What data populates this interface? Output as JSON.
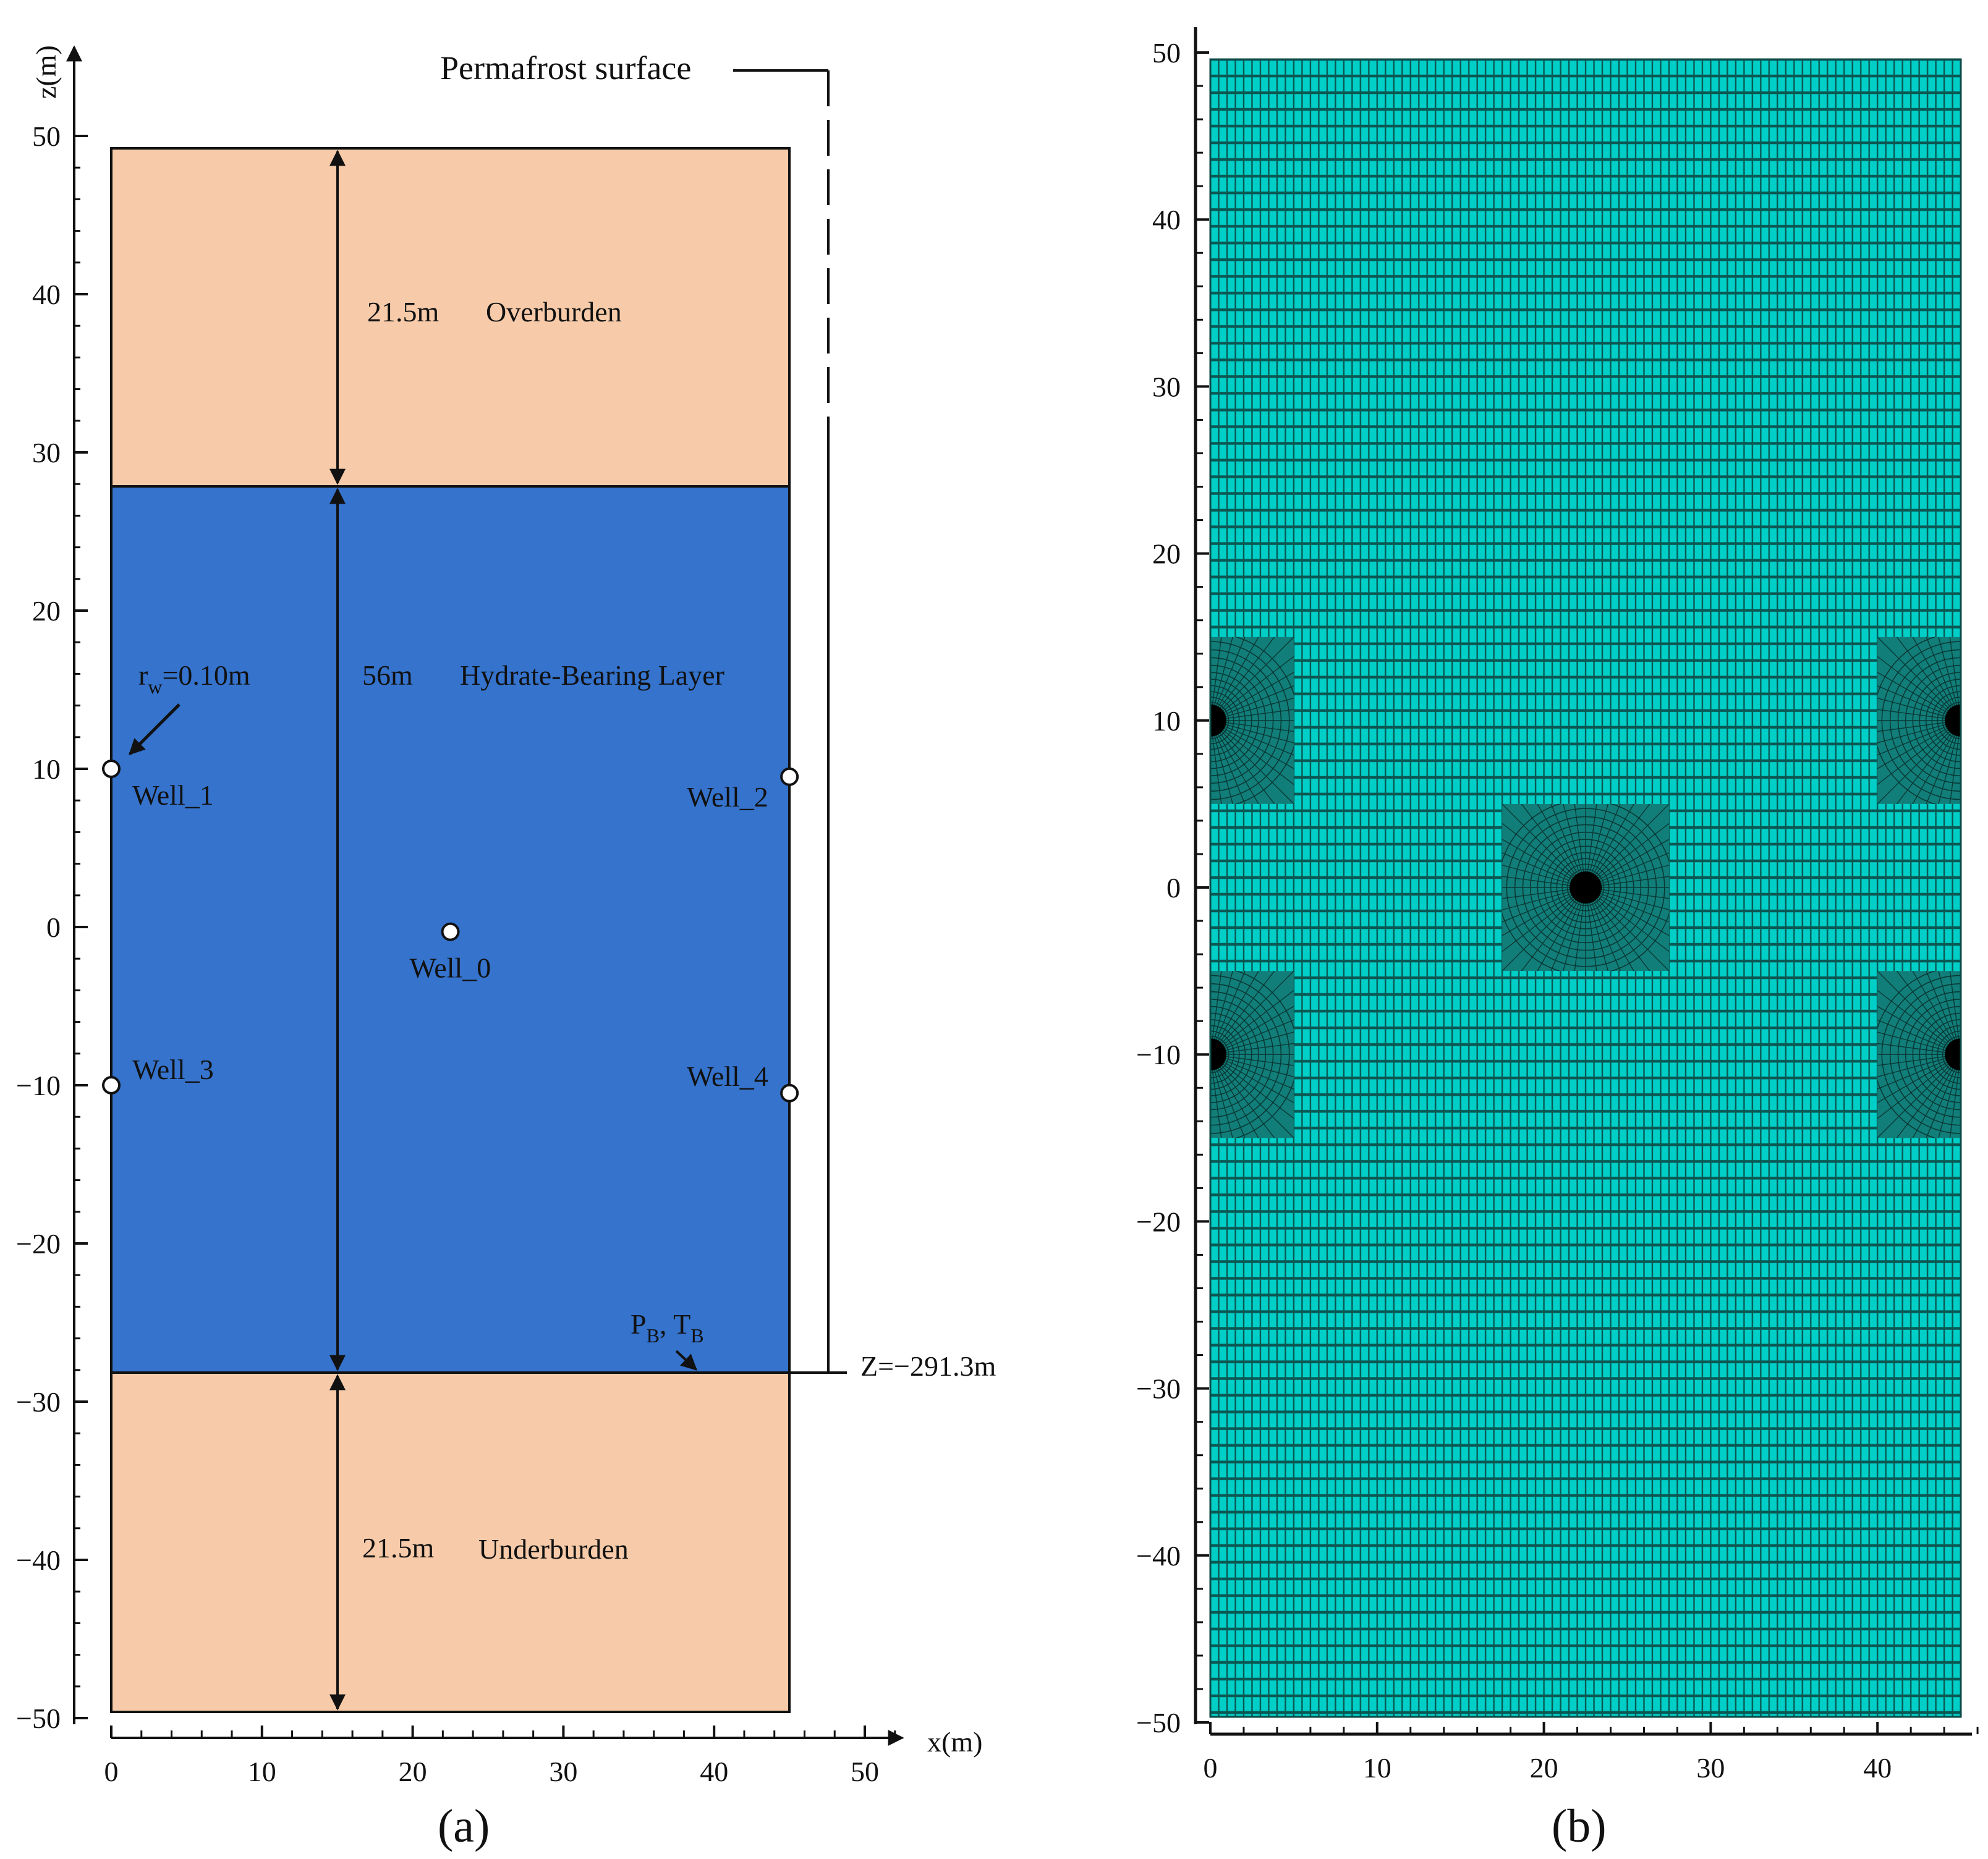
{
  "panel_a": {
    "label": "(a)",
    "axis": {
      "x_title": "x(m)",
      "z_title": "z(m)",
      "x_ticks": [
        "0",
        "10",
        "20",
        "30",
        "40",
        "50"
      ],
      "z_ticks": [
        "50",
        "40",
        "30",
        "20",
        "10",
        "0",
        "−10",
        "−20",
        "−30",
        "−40",
        "−50"
      ]
    },
    "layers": {
      "overburden": {
        "name": "Overburden",
        "thickness": "21.5m",
        "color": "#f7cba9"
      },
      "hydrate": {
        "name": "Hydrate-Bearing Layer",
        "thickness": "56m",
        "color": "#3573cc"
      },
      "underburden": {
        "name": "Underburden",
        "thickness": "21.5m",
        "color": "#f7cba9"
      }
    },
    "permafrost_label": "Permafrost surface",
    "depth_label": "Z=−291.3m",
    "radius_label": {
      "main": "r",
      "sub": "w",
      "rest": "=0.10m"
    },
    "boundary_label": {
      "p": "P",
      "p_sub": "B",
      "sep": ", ",
      "t": "T",
      "t_sub": "B"
    },
    "wells": [
      {
        "name": "Well_0",
        "x": 22.5,
        "z": -0.3
      },
      {
        "name": "Well_1",
        "x": 0,
        "z": 10
      },
      {
        "name": "Well_2",
        "x": 45,
        "z": 9.5
      },
      {
        "name": "Well_3",
        "x": 0,
        "z": -10
      },
      {
        "name": "Well_4",
        "x": 45,
        "z": -10.5
      }
    ]
  },
  "panel_b": {
    "label": "(b)",
    "mesh_color": "#00cfc8",
    "x_ticks": [
      "0",
      "10",
      "20",
      "30",
      "40"
    ],
    "y_ticks": [
      "50",
      "40",
      "30",
      "20",
      "10",
      "0",
      "−10",
      "−20",
      "−30",
      "−40",
      "−50"
    ],
    "refined_wells": [
      {
        "x": 0,
        "z": 10
      },
      {
        "x": 45,
        "z": 10
      },
      {
        "x": 22.5,
        "z": 0
      },
      {
        "x": 0,
        "z": -10
      },
      {
        "x": 45,
        "z": -10
      }
    ]
  }
}
